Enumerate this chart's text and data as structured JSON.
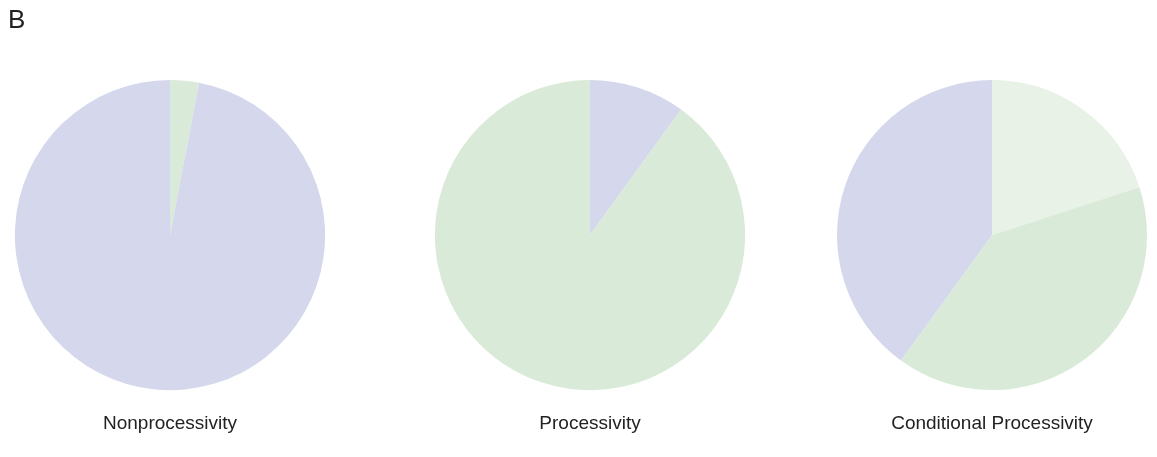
{
  "chart_data": [
    {
      "type": "pie",
      "title": "Nonprocessivity",
      "annotations": [
        "B"
      ],
      "categories": [
        null,
        null
      ],
      "values": [
        3,
        97
      ],
      "colors": [
        "#d9ead8",
        "#d5d8ec"
      ],
      "legend": false
    },
    {
      "type": "pie",
      "title": "Processivity",
      "categories": [
        null,
        null
      ],
      "values": [
        10,
        90
      ],
      "colors": [
        "#d5d8ec",
        "#d9ead8"
      ],
      "legend": false
    },
    {
      "type": "pie",
      "title": "Conditional Processivity",
      "categories": [
        null,
        null,
        null
      ],
      "values": [
        20,
        40,
        40
      ],
      "colors": [
        "#e8f2e6",
        "#d9ead8",
        "#d5d8ec"
      ],
      "legend": false
    }
  ]
}
